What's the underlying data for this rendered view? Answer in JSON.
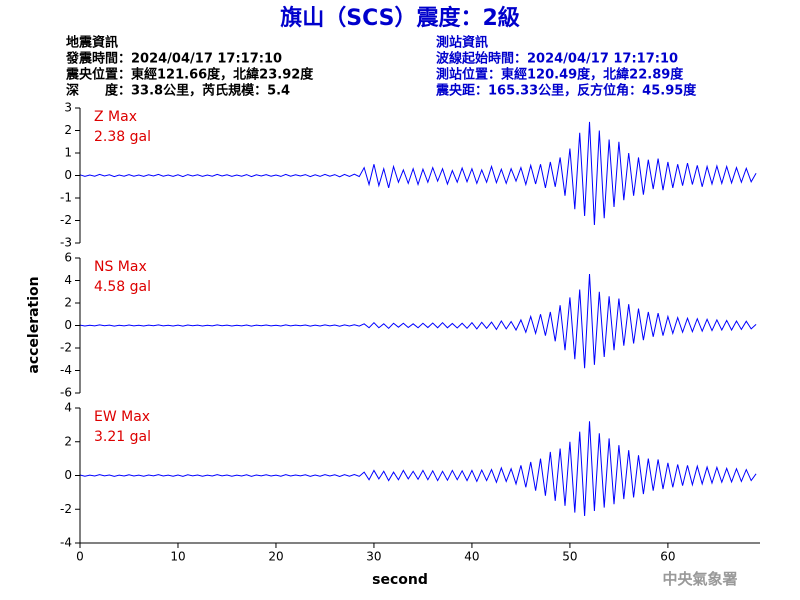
{
  "title": "旗山（SCS）震度：2級",
  "info_left": [
    "地震資訊",
    "發震時間：2024/04/17 17:17:10",
    "震央位置：東經121.66度，北緯23.92度",
    "深　　度：33.8公里，芮氏規模：5.4"
  ],
  "info_right": [
    "測站資訊",
    "波線起始時間：2024/04/17 17:17:10",
    "測站位置：東經120.49度，北緯22.89度",
    "震央距：165.33公里，反方位角：45.95度"
  ],
  "ylabel": "acceleration",
  "xlabel": "second",
  "agency": "中央氣象署",
  "chart_data": [
    {
      "type": "line",
      "label": "Z Max",
      "max_label": "2.38 gal",
      "xlim": [
        0,
        69.4
      ],
      "ylim": [
        -3,
        3
      ],
      "yticks": [
        -3,
        -2,
        -1,
        0,
        1,
        2,
        3
      ],
      "x": [
        0,
        0.5,
        1,
        1.5,
        2,
        2.5,
        3,
        3.5,
        4,
        4.5,
        5,
        5.5,
        6,
        6.5,
        7,
        7.5,
        8,
        8.5,
        9,
        9.5,
        10,
        10.5,
        11,
        11.5,
        12,
        12.5,
        13,
        13.5,
        14,
        14.5,
        15,
        15.5,
        16,
        16.5,
        17,
        17.5,
        18,
        18.5,
        19,
        19.5,
        20,
        20.5,
        21,
        21.5,
        22,
        22.5,
        23,
        23.5,
        24,
        24.5,
        25,
        25.5,
        26,
        26.5,
        27,
        27.5,
        28,
        28.5,
        29,
        29.5,
        30,
        30.5,
        31,
        31.5,
        32,
        32.5,
        33,
        33.5,
        34,
        34.5,
        35,
        35.5,
        36,
        36.5,
        37,
        37.5,
        38,
        38.5,
        39,
        39.5,
        40,
        40.5,
        41,
        41.5,
        42,
        42.5,
        43,
        43.5,
        44,
        44.5,
        45,
        45.5,
        46,
        46.5,
        47,
        47.5,
        48,
        48.5,
        49,
        49.5,
        50,
        50.5,
        51,
        51.5,
        52,
        52.5,
        53,
        53.5,
        54,
        54.5,
        55,
        55.5,
        56,
        56.5,
        57,
        57.5,
        58,
        58.5,
        59,
        59.5,
        60,
        60.5,
        61,
        61.5,
        62,
        62.5,
        63,
        63.5,
        64,
        64.5,
        65,
        65.5,
        66,
        66.5,
        67,
        67.5,
        68,
        68.5,
        69
      ],
      "series": [
        {
          "color": "#0000ff",
          "values": [
            0.03,
            -0.04,
            0.02,
            -0.03,
            0.05,
            -0.02,
            0.03,
            -0.05,
            0.02,
            -0.03,
            0.04,
            -0.03,
            0.02,
            -0.04,
            0.03,
            -0.02,
            0.05,
            -0.03,
            0.02,
            -0.04,
            0.03,
            -0.05,
            0.04,
            -0.02,
            0.03,
            -0.04,
            0.02,
            -0.03,
            0.05,
            -0.02,
            0.03,
            -0.04,
            0.02,
            -0.03,
            0.04,
            -0.05,
            0.03,
            -0.02,
            0.04,
            -0.03,
            0.02,
            -0.04,
            0.05,
            -0.03,
            0.03,
            -0.02,
            0.04,
            -0.05,
            0.03,
            -0.04,
            0.05,
            -0.03,
            0.04,
            -0.06,
            0.05,
            -0.04,
            0.06,
            -0.05,
            0.35,
            -0.4,
            0.5,
            -0.45,
            0.3,
            -0.55,
            0.4,
            -0.3,
            0.25,
            -0.35,
            0.3,
            -0.4,
            0.28,
            -0.3,
            0.35,
            -0.25,
            0.3,
            -0.38,
            0.22,
            -0.3,
            0.33,
            -0.28,
            0.3,
            -0.35,
            0.25,
            -0.3,
            0.4,
            -0.32,
            0.28,
            -0.35,
            0.3,
            -0.25,
            0.35,
            -0.4,
            0.45,
            -0.38,
            0.5,
            -0.55,
            0.6,
            -0.5,
            0.8,
            -0.9,
            1.2,
            -1.5,
            1.9,
            -1.8,
            2.38,
            -2.2,
            2.0,
            -1.9,
            1.6,
            -1.4,
            1.5,
            -1.1,
            1.0,
            -0.9,
            0.8,
            -0.85,
            0.7,
            -0.6,
            0.75,
            -0.65,
            0.6,
            -0.55,
            0.5,
            -0.45,
            0.55,
            -0.4,
            0.45,
            -0.5,
            0.4,
            -0.38,
            0.42,
            -0.35,
            0.4,
            -0.33,
            0.35,
            -0.3,
            0.32,
            -0.28,
            0.1
          ]
        }
      ]
    },
    {
      "type": "line",
      "label": "NS Max",
      "max_label": "4.58 gal",
      "xlim": [
        0,
        69.4
      ],
      "ylim": [
        -6,
        6
      ],
      "yticks": [
        -6,
        -4,
        -2,
        0,
        2,
        4,
        6
      ],
      "x": [
        0,
        0.5,
        1,
        1.5,
        2,
        2.5,
        3,
        3.5,
        4,
        4.5,
        5,
        5.5,
        6,
        6.5,
        7,
        7.5,
        8,
        8.5,
        9,
        9.5,
        10,
        10.5,
        11,
        11.5,
        12,
        12.5,
        13,
        13.5,
        14,
        14.5,
        15,
        15.5,
        16,
        16.5,
        17,
        17.5,
        18,
        18.5,
        19,
        19.5,
        20,
        20.5,
        21,
        21.5,
        22,
        22.5,
        23,
        23.5,
        24,
        24.5,
        25,
        25.5,
        26,
        26.5,
        27,
        27.5,
        28,
        28.5,
        29,
        29.5,
        30,
        30.5,
        31,
        31.5,
        32,
        32.5,
        33,
        33.5,
        34,
        34.5,
        35,
        35.5,
        36,
        36.5,
        37,
        37.5,
        38,
        38.5,
        39,
        39.5,
        40,
        40.5,
        41,
        41.5,
        42,
        42.5,
        43,
        43.5,
        44,
        44.5,
        45,
        45.5,
        46,
        46.5,
        47,
        47.5,
        48,
        48.5,
        49,
        49.5,
        50,
        50.5,
        51,
        51.5,
        52,
        52.5,
        53,
        53.5,
        54,
        54.5,
        55,
        55.5,
        56,
        56.5,
        57,
        57.5,
        58,
        58.5,
        59,
        59.5,
        60,
        60.5,
        61,
        61.5,
        62,
        62.5,
        63,
        63.5,
        64,
        64.5,
        65,
        65.5,
        66,
        66.5,
        67,
        67.5,
        68,
        68.5,
        69
      ],
      "series": [
        {
          "color": "#0000ff",
          "values": [
            0.03,
            -0.04,
            0.02,
            -0.03,
            0.05,
            -0.02,
            0.03,
            -0.05,
            0.02,
            -0.03,
            0.04,
            -0.03,
            0.02,
            -0.04,
            0.03,
            -0.02,
            0.05,
            -0.03,
            0.02,
            -0.04,
            0.03,
            -0.05,
            0.04,
            -0.02,
            0.03,
            -0.04,
            0.02,
            -0.03,
            0.05,
            -0.02,
            0.03,
            -0.04,
            0.02,
            -0.03,
            0.04,
            -0.05,
            0.03,
            -0.02,
            0.04,
            -0.03,
            0.02,
            -0.04,
            0.05,
            -0.03,
            0.03,
            -0.02,
            0.04,
            -0.05,
            0.03,
            -0.04,
            0.05,
            -0.03,
            0.04,
            -0.06,
            0.05,
            -0.04,
            0.06,
            -0.05,
            0.15,
            -0.2,
            0.25,
            -0.2,
            0.15,
            -0.25,
            0.2,
            -0.15,
            0.2,
            -0.18,
            0.15,
            -0.2,
            0.2,
            -0.18,
            0.22,
            -0.2,
            0.25,
            -0.2,
            0.18,
            -0.22,
            0.2,
            -0.25,
            0.25,
            -0.3,
            0.28,
            -0.25,
            0.3,
            -0.35,
            0.4,
            -0.3,
            0.35,
            -0.4,
            0.5,
            -0.6,
            0.8,
            -0.7,
            1.0,
            -0.9,
            1.2,
            -1.4,
            1.8,
            -2.2,
            2.5,
            -3.0,
            3.2,
            -3.8,
            4.58,
            -3.5,
            3.0,
            -2.8,
            2.6,
            -2.2,
            2.4,
            -1.8,
            1.9,
            -1.6,
            1.5,
            -1.3,
            1.2,
            -1.0,
            1.1,
            -0.9,
            0.8,
            -0.7,
            0.7,
            -0.6,
            0.65,
            -0.55,
            0.6,
            -0.5,
            0.55,
            -0.45,
            0.5,
            -0.4,
            0.45,
            -0.4,
            0.4,
            -0.35,
            0.38,
            -0.3,
            0.1
          ]
        }
      ]
    },
    {
      "type": "line",
      "label": "EW Max",
      "max_label": "3.21 gal",
      "xlim": [
        0,
        69.4
      ],
      "ylim": [
        -4,
        4
      ],
      "yticks": [
        -4,
        -2,
        0,
        2,
        4
      ],
      "xticks": [
        0,
        10,
        20,
        30,
        40,
        50,
        60
      ],
      "x": [
        0,
        0.5,
        1,
        1.5,
        2,
        2.5,
        3,
        3.5,
        4,
        4.5,
        5,
        5.5,
        6,
        6.5,
        7,
        7.5,
        8,
        8.5,
        9,
        9.5,
        10,
        10.5,
        11,
        11.5,
        12,
        12.5,
        13,
        13.5,
        14,
        14.5,
        15,
        15.5,
        16,
        16.5,
        17,
        17.5,
        18,
        18.5,
        19,
        19.5,
        20,
        20.5,
        21,
        21.5,
        22,
        22.5,
        23,
        23.5,
        24,
        24.5,
        25,
        25.5,
        26,
        26.5,
        27,
        27.5,
        28,
        28.5,
        29,
        29.5,
        30,
        30.5,
        31,
        31.5,
        32,
        32.5,
        33,
        33.5,
        34,
        34.5,
        35,
        35.5,
        36,
        36.5,
        37,
        37.5,
        38,
        38.5,
        39,
        39.5,
        40,
        40.5,
        41,
        41.5,
        42,
        42.5,
        43,
        43.5,
        44,
        44.5,
        45,
        45.5,
        46,
        46.5,
        47,
        47.5,
        48,
        48.5,
        49,
        49.5,
        50,
        50.5,
        51,
        51.5,
        52,
        52.5,
        53,
        53.5,
        54,
        54.5,
        55,
        55.5,
        56,
        56.5,
        57,
        57.5,
        58,
        58.5,
        59,
        59.5,
        60,
        60.5,
        61,
        61.5,
        62,
        62.5,
        63,
        63.5,
        64,
        64.5,
        65,
        65.5,
        66,
        66.5,
        67,
        67.5,
        68,
        68.5,
        69
      ],
      "series": [
        {
          "color": "#0000ff",
          "values": [
            0.03,
            -0.04,
            0.02,
            -0.03,
            0.05,
            -0.02,
            0.03,
            -0.05,
            0.02,
            -0.03,
            0.04,
            -0.03,
            0.02,
            -0.04,
            0.03,
            -0.02,
            0.05,
            -0.03,
            0.02,
            -0.04,
            0.03,
            -0.05,
            0.04,
            -0.02,
            0.03,
            -0.04,
            0.02,
            -0.03,
            0.05,
            -0.02,
            0.03,
            -0.04,
            0.02,
            -0.03,
            0.04,
            -0.05,
            0.03,
            -0.02,
            0.04,
            -0.03,
            0.02,
            -0.04,
            0.05,
            -0.03,
            0.03,
            -0.02,
            0.04,
            -0.05,
            0.03,
            -0.04,
            0.05,
            -0.03,
            0.04,
            -0.06,
            0.05,
            -0.04,
            0.06,
            -0.05,
            0.2,
            -0.25,
            0.3,
            -0.2,
            0.25,
            -0.3,
            0.2,
            -0.25,
            0.3,
            -0.2,
            0.25,
            -0.22,
            0.3,
            -0.25,
            0.28,
            -0.3,
            0.25,
            -0.28,
            0.3,
            -0.25,
            0.28,
            -0.3,
            0.3,
            -0.35,
            0.32,
            -0.3,
            0.35,
            -0.4,
            0.45,
            -0.35,
            0.4,
            -0.5,
            0.6,
            -0.7,
            0.8,
            -0.9,
            1.0,
            -1.2,
            1.4,
            -1.5,
            1.6,
            -1.8,
            2.0,
            -2.2,
            2.6,
            -2.4,
            3.21,
            -2.1,
            2.5,
            -1.9,
            2.2,
            -1.7,
            1.8,
            -1.4,
            1.5,
            -1.3,
            1.2,
            -1.1,
            1.0,
            -0.9,
            0.95,
            -0.8,
            0.75,
            -0.7,
            0.65,
            -0.6,
            0.6,
            -0.55,
            0.55,
            -0.5,
            0.5,
            -0.45,
            0.48,
            -0.4,
            0.42,
            -0.38,
            0.4,
            -0.35,
            0.35,
            -0.3,
            0.1
          ]
        }
      ]
    }
  ]
}
